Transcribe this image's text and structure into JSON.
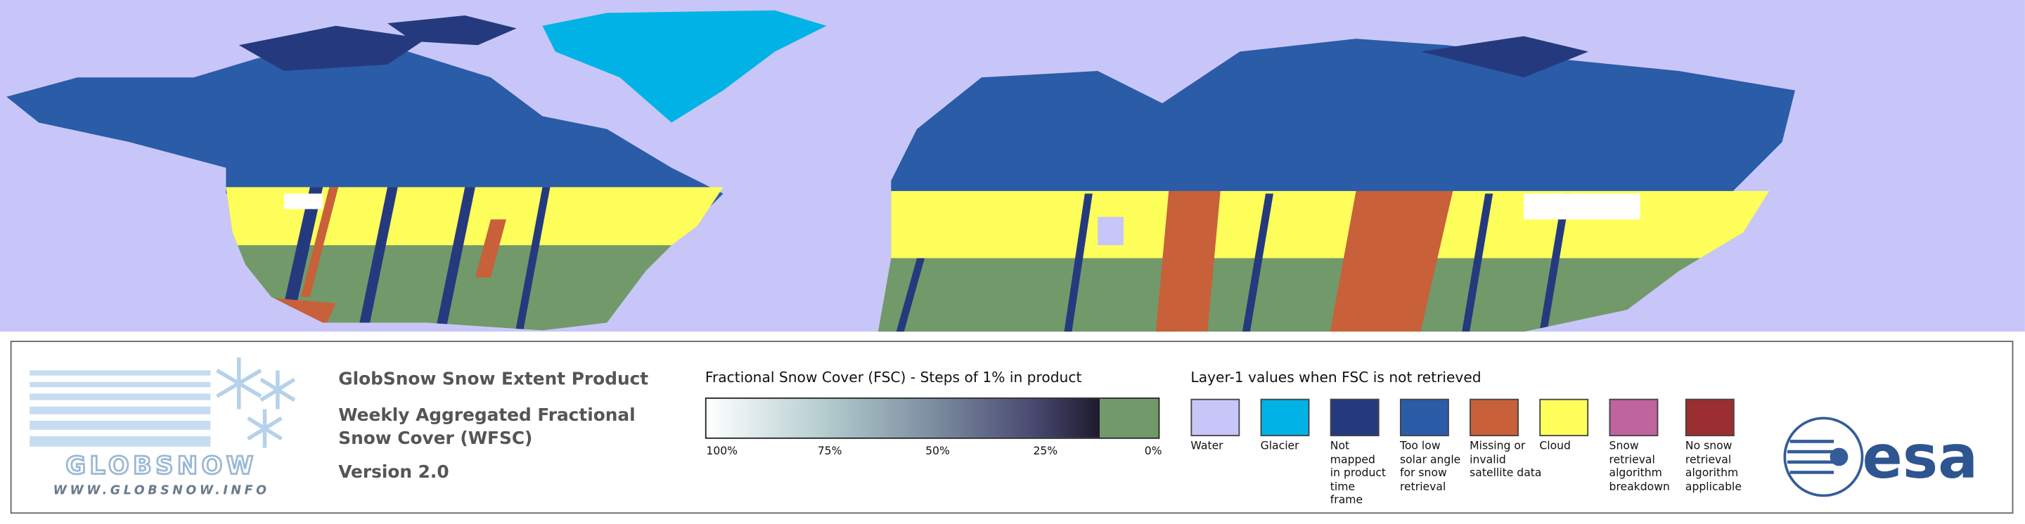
{
  "logo": {
    "name": "GLOBSNOW",
    "url": "WWW.GLOBSNOW.INFO"
  },
  "product": {
    "title": "GlobSnow Snow Extent Product",
    "subtitle": "Weekly Aggregated Fractional Snow Cover (WFSC)",
    "version": "Version 2.0"
  },
  "fsc_legend": {
    "title": "Fractional Snow Cover (FSC) - Steps of 1% in product",
    "ticks": [
      "100%",
      "75%",
      "50%",
      "25%",
      "0%"
    ]
  },
  "layer1_legend": {
    "title": "Layer-1 values when FSC is not retrieved",
    "items": [
      {
        "label": "Water",
        "color": "#c8c6f8"
      },
      {
        "label": "Glacier",
        "color": "#00b2e6"
      },
      {
        "label": "Not mapped in product time frame",
        "color": "#253a7e"
      },
      {
        "label": "Too low solar angle for snow retrieval",
        "color": "#2a5ca8"
      },
      {
        "label": "Missing or invalid satellite data",
        "color": "#c8603a"
      },
      {
        "label": "Cloud",
        "color": "#ffff5c"
      },
      {
        "label": "Snow retrieval algorithm breakdown",
        "color": "#c064a0"
      },
      {
        "label": "No snow retrieval algorithm applicable",
        "color": "#9a2e30"
      }
    ]
  },
  "agency": "esa"
}
